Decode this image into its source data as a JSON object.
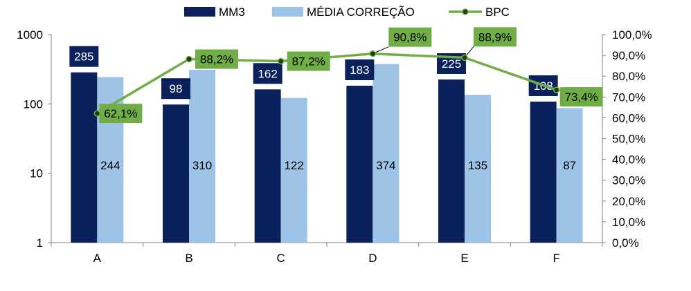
{
  "chart_data": {
    "type": "bar",
    "categories": [
      "A",
      "B",
      "C",
      "D",
      "E",
      "F"
    ],
    "series": [
      {
        "name": "MM3",
        "type": "bar",
        "axis": "left",
        "values": [
          285,
          98,
          162,
          183,
          225,
          108
        ],
        "color": "#0b215c"
      },
      {
        "name": "MÉDIA CORREÇÃO",
        "type": "bar",
        "axis": "left",
        "values": [
          244,
          310,
          122,
          374,
          135,
          87
        ],
        "color": "#9dc3e6"
      },
      {
        "name": "BPC",
        "type": "line",
        "axis": "right",
        "values": [
          62.1,
          88.2,
          87.2,
          90.8,
          88.9,
          73.4
        ],
        "labels": [
          "62,1%",
          "88,2%",
          "87,2%",
          "90,8%",
          "88,9%",
          "73,4%"
        ],
        "color": "#70ad47"
      }
    ],
    "y_left": {
      "scale": "log",
      "lim": [
        1,
        1000
      ],
      "ticks": [
        "1",
        "10",
        "100",
        "1000"
      ]
    },
    "y_right": {
      "scale": "linear",
      "lim": [
        0,
        100
      ],
      "ticks": [
        "0,0%",
        "10,0%",
        "20,0%",
        "30,0%",
        "40,0%",
        "50,0%",
        "60,0%",
        "70,0%",
        "80,0%",
        "90,0%",
        "100,0%"
      ]
    },
    "legend_position": "top",
    "grid": false
  }
}
